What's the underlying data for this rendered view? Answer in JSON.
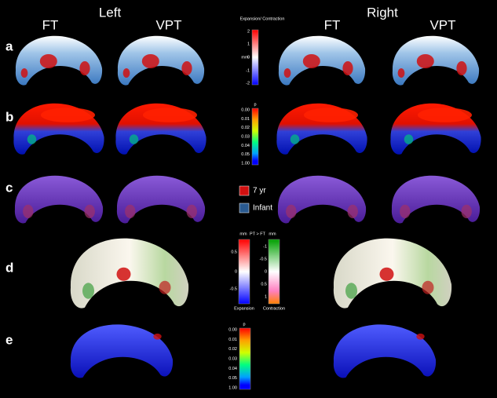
{
  "header": {
    "left": "Left",
    "right": "Right",
    "columns": [
      "FT",
      "VPT",
      "FT",
      "VPT"
    ]
  },
  "row_labels": [
    "a",
    "b",
    "c",
    "d",
    "e"
  ],
  "colorbar_a": {
    "title": "Expansion/ Contraction",
    "unit": "mm",
    "ticks": [
      "2",
      "1",
      "0",
      "-1",
      "-2"
    ]
  },
  "colorbar_b": {
    "title": "p",
    "ticks": [
      "0.00",
      "0.01",
      "0.02",
      "0.03",
      "0.04",
      "0.05",
      "1.00"
    ]
  },
  "legend_c": {
    "items": [
      "7 yr",
      "Infant"
    ]
  },
  "colorbar_d": {
    "left_unit": "mm",
    "comparison": "PT > FT",
    "right_unit": "mm",
    "left_ticks": [
      "0.5",
      "0",
      "-0.5"
    ],
    "right_ticks": [
      "-1",
      "-0.5",
      "0",
      "0.5",
      "1"
    ],
    "left_caption": "Expansion",
    "right_caption": "Contraction"
  },
  "colorbar_e": {
    "title": "p",
    "ticks": [
      "0.00",
      "0.01",
      "0.02",
      "0.03",
      "0.04",
      "0.05",
      "1.00"
    ]
  }
}
